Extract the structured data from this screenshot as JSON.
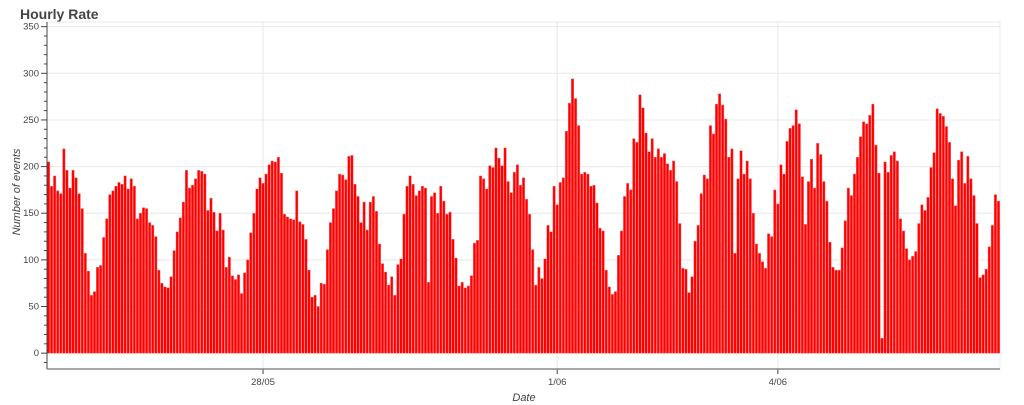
{
  "chart_data": {
    "type": "bar",
    "title": "Hourly Rate",
    "xlabel": "Date",
    "ylabel": "Number of events",
    "x_start": "25/05 02:00",
    "x_step_hours": 1,
    "ylim": [
      -17,
      355
    ],
    "y_ticks": [
      0,
      50,
      100,
      150,
      200,
      250,
      300,
      350
    ],
    "y_tick_labels": [
      "0",
      "50",
      "100",
      "150",
      "200",
      "250",
      "300",
      "350"
    ],
    "x_ticks": [
      {
        "label": "28/05",
        "date": "28/05 00:00"
      },
      {
        "label": "1/06",
        "date": "01/06 00:00"
      },
      {
        "label": "4/06",
        "date": "04/06 00:00"
      }
    ],
    "grid": true,
    "bar_color": "#ff0000",
    "values": [
      205,
      179,
      190,
      174,
      171,
      219,
      196,
      177,
      196,
      188,
      171,
      155,
      107,
      88,
      62,
      66,
      92,
      94,
      124,
      144,
      170,
      174,
      179,
      183,
      181,
      190,
      176,
      187,
      179,
      144,
      150,
      156,
      155,
      140,
      137,
      125,
      89,
      75,
      71,
      70,
      82,
      110,
      130,
      145,
      162,
      196,
      177,
      180,
      187,
      196,
      195,
      192,
      153,
      166,
      151,
      131,
      150,
      132,
      92,
      103,
      83,
      79,
      84,
      64,
      86,
      100,
      129,
      150,
      176,
      188,
      182,
      192,
      202,
      206,
      205,
      210,
      193,
      149,
      146,
      144,
      143,
      174,
      141,
      138,
      122,
      89,
      60,
      62,
      50,
      75,
      74,
      111,
      140,
      155,
      174,
      192,
      191,
      186,
      211,
      212,
      181,
      168,
      140,
      162,
      132,
      162,
      168,
      152,
      117,
      96,
      87,
      73,
      82,
      62,
      95,
      101,
      149,
      179,
      190,
      181,
      169,
      174,
      179,
      177,
      76,
      168,
      172,
      150,
      179,
      163,
      149,
      151,
      122,
      102,
      72,
      76,
      70,
      72,
      83,
      118,
      121,
      190,
      187,
      176,
      201,
      199,
      220,
      209,
      201,
      220,
      184,
      172,
      194,
      202,
      180,
      188,
      165,
      149,
      111,
      73,
      92,
      80,
      101,
      137,
      130,
      179,
      159,
      183,
      188,
      238,
      268,
      294,
      273,
      244,
      192,
      194,
      192,
      179,
      180,
      161,
      134,
      131,
      89,
      71,
      63,
      66,
      105,
      131,
      168,
      182,
      175,
      230,
      226,
      277,
      263,
      236,
      216,
      230,
      210,
      219,
      210,
      214,
      203,
      196,
      206,
      184,
      139,
      91,
      90,
      65,
      82,
      120,
      137,
      171,
      191,
      187,
      244,
      235,
      267,
      278,
      266,
      251,
      210,
      219,
      107,
      187,
      217,
      192,
      206,
      187,
      150,
      117,
      107,
      98,
      91,
      128,
      125,
      175,
      160,
      202,
      192,
      227,
      241,
      244,
      261,
      246,
      189,
      138,
      184,
      208,
      177,
      225,
      213,
      184,
      163,
      119,
      92,
      89,
      89,
      113,
      142,
      177,
      169,
      192,
      210,
      232,
      248,
      246,
      255,
      267,
      223,
      193,
      16,
      205,
      194,
      212,
      216,
      206,
      144,
      131,
      112,
      100,
      104,
      109,
      139,
      159,
      153,
      167,
      199,
      215,
      262,
      257,
      254,
      243,
      226,
      187,
      158,
      207,
      216,
      182,
      211,
      187,
      169,
      139,
      81,
      84,
      90,
      114,
      137,
      170,
      163
    ]
  }
}
